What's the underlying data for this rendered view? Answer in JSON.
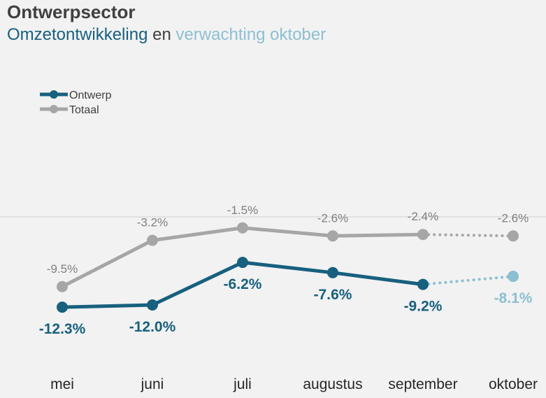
{
  "title": "Ontwerpsector",
  "subtitle": {
    "part1": "Omzetontwikkeling",
    "part2": " en ",
    "part3": "verwachting oktober"
  },
  "chart_data": {
    "type": "line",
    "categories": [
      "mei",
      "juni",
      "juli",
      "augustus",
      "september",
      "oktober"
    ],
    "series": [
      {
        "name": "Ontwerp",
        "values": [
          -12.3,
          -12.0,
          -6.2,
          -7.6,
          -9.2,
          -8.1
        ],
        "labels": [
          "-12.3%",
          "-12.0%",
          "-6.2%",
          "-7.6%",
          "-9.2%",
          "-8.1%"
        ],
        "color": "#17607e",
        "forecast_color": "#8cbfd2",
        "forecast_from_index": 4
      },
      {
        "name": "Totaal",
        "values": [
          -9.5,
          -3.2,
          -1.5,
          -2.6,
          -2.4,
          -2.6
        ],
        "labels": [
          "-9.5%",
          "-3.2%",
          "-1.5%",
          "-2.6%",
          "-2.4%",
          "-2.6%"
        ],
        "color": "#a6a6a6",
        "forecast_color": "#a6a6a6",
        "forecast_from_index": 4
      }
    ],
    "zero_line": true,
    "legend": "top-left",
    "grid": false
  }
}
